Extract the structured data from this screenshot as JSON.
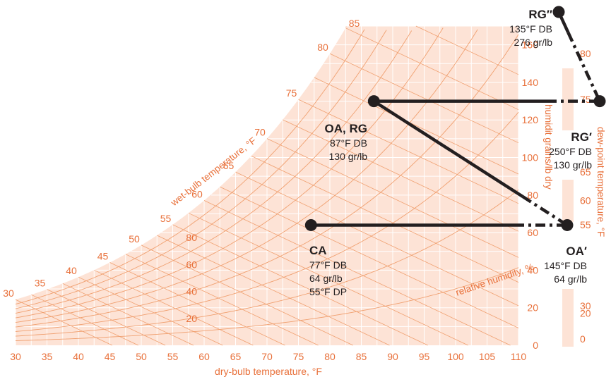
{
  "colors": {
    "fill": "#fde3d6",
    "grid": "#ffffff",
    "curve": "#f0a070",
    "text_orange": "#e8703a",
    "text_dark": "#231f20",
    "path": "#231f20"
  },
  "chart_data": {
    "type": "psychrometric",
    "x_axis": {
      "label": "dry-bulb temperature, °F",
      "min": 30,
      "max": 110,
      "ticks": [
        "30",
        "35",
        "40",
        "45",
        "50",
        "55",
        "60",
        "65",
        "70",
        "75",
        "80",
        "85",
        "90",
        "95",
        "100",
        "105",
        "110"
      ]
    },
    "y_axis_right": {
      "label": "humidity ratio, grains/lb of dry air",
      "label_visible": "humidit  grains/lb dry",
      "min": 0,
      "max": 170,
      "ticks": [
        "0",
        "20",
        "40",
        "60",
        "80",
        "100",
        "120",
        "140",
        "160"
      ]
    },
    "wet_bulb_axis": {
      "label": "wet-bulb temperature, °F",
      "ticks": [
        "30",
        "35",
        "40",
        "45",
        "50",
        "55",
        "60",
        "65",
        "70",
        "75",
        "80",
        "85"
      ]
    },
    "dew_point_axis": {
      "label": "dew-point temperature, °F",
      "ticks": [
        "0",
        "20",
        "30",
        "55",
        "60",
        "65",
        "75",
        "80"
      ]
    },
    "rh_curves": {
      "label": "relative humidity, %",
      "ticks": [
        "20",
        "40",
        "60",
        "80"
      ]
    },
    "points": [
      {
        "id": "CA",
        "name": "CA",
        "db": 77,
        "gr": 64,
        "lines": [
          "77°F DB",
          "64 gr/lb",
          "55°F DP"
        ]
      },
      {
        "id": "OA_RG",
        "name": "OA, RG",
        "db": 87,
        "gr": 130,
        "lines": [
          "87°F DB",
          "130 gr/lb"
        ]
      },
      {
        "id": "OA_prime",
        "name": "OA′",
        "db": 145,
        "gr": 64,
        "lines": [
          "145°F DB",
          "64 gr/lb"
        ]
      },
      {
        "id": "RG_prime",
        "name": "RG′",
        "db": 250,
        "gr": 130,
        "lines": [
          "250°F DB",
          "130 gr/lb"
        ]
      },
      {
        "id": "RG_dprime",
        "name": "RG″",
        "db": 135,
        "gr": 276,
        "lines": [
          "135°F DB",
          "276 gr/lb"
        ]
      }
    ],
    "paths": [
      {
        "from": "CA",
        "to": "OA_prime"
      },
      {
        "from": "OA_RG",
        "to": "RG_prime"
      },
      {
        "from": "OA_RG",
        "to": "OA_prime"
      },
      {
        "from": "RG_dprime",
        "to": "RG_prime"
      }
    ]
  }
}
